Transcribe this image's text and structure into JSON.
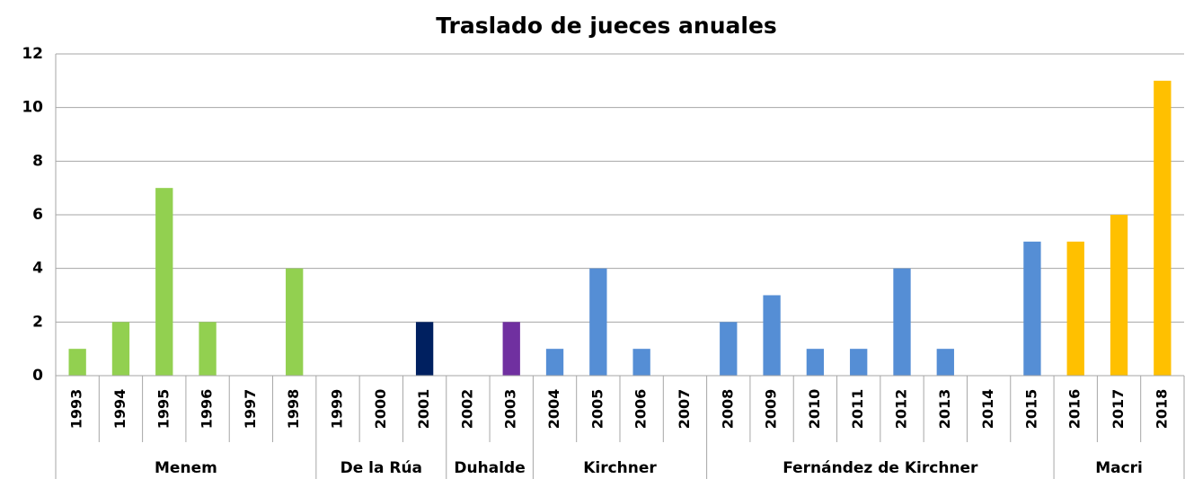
{
  "chart_data": {
    "type": "bar",
    "title": "Traslado de jueces anuales",
    "categories": [
      "1993",
      "1994",
      "1995",
      "1996",
      "1997",
      "1998",
      "1999",
      "2000",
      "2001",
      "2002",
      "2003",
      "2004",
      "2005",
      "2006",
      "2007",
      "2008",
      "2009",
      "2010",
      "2011",
      "2012",
      "2013",
      "2014",
      "2015",
      "2016",
      "2017",
      "2018"
    ],
    "values": [
      1,
      2,
      7,
      2,
      0,
      4,
      0,
      0,
      2,
      0,
      2,
      1,
      4,
      1,
      0,
      2,
      3,
      1,
      1,
      4,
      1,
      0,
      5,
      5,
      6,
      11
    ],
    "groups": [
      {
        "name": "Menem",
        "count": 6,
        "color": "#92d050"
      },
      {
        "name": "De la Rúa",
        "count": 3,
        "color": "#002060"
      },
      {
        "name": "Duhalde",
        "count": 2,
        "color": "#7030a0"
      },
      {
        "name": "Kirchner",
        "count": 4,
        "color": "#558ed5"
      },
      {
        "name": "Fernández de Kirchner",
        "count": 8,
        "color": "#558ed5"
      },
      {
        "name": "Macri",
        "count": 3,
        "color": "#ffc000"
      }
    ],
    "ylim": [
      0,
      12
    ],
    "yticks": [
      0,
      2,
      4,
      6,
      8,
      10,
      12
    ],
    "grid": true
  }
}
